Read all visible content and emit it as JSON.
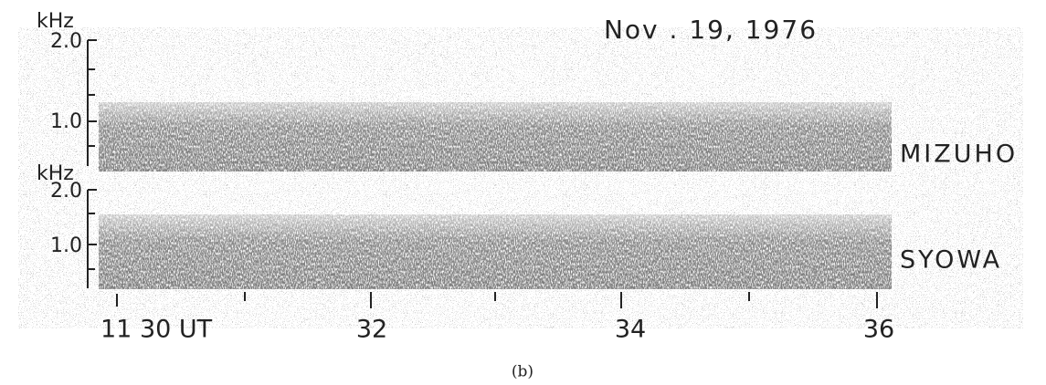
{
  "figure": {
    "date": "Nov . 19, 1976",
    "panels": [
      {
        "unit": "kHz",
        "ticks": [
          "2.0",
          "1.0"
        ],
        "station": "MIZUHO"
      },
      {
        "unit": "kHz",
        "ticks": [
          "2.0",
          "1.0"
        ],
        "station": "SYOWA"
      }
    ],
    "time_labels": [
      "11 30 UT",
      "32",
      "34",
      "36"
    ],
    "caption": "(b)"
  }
}
